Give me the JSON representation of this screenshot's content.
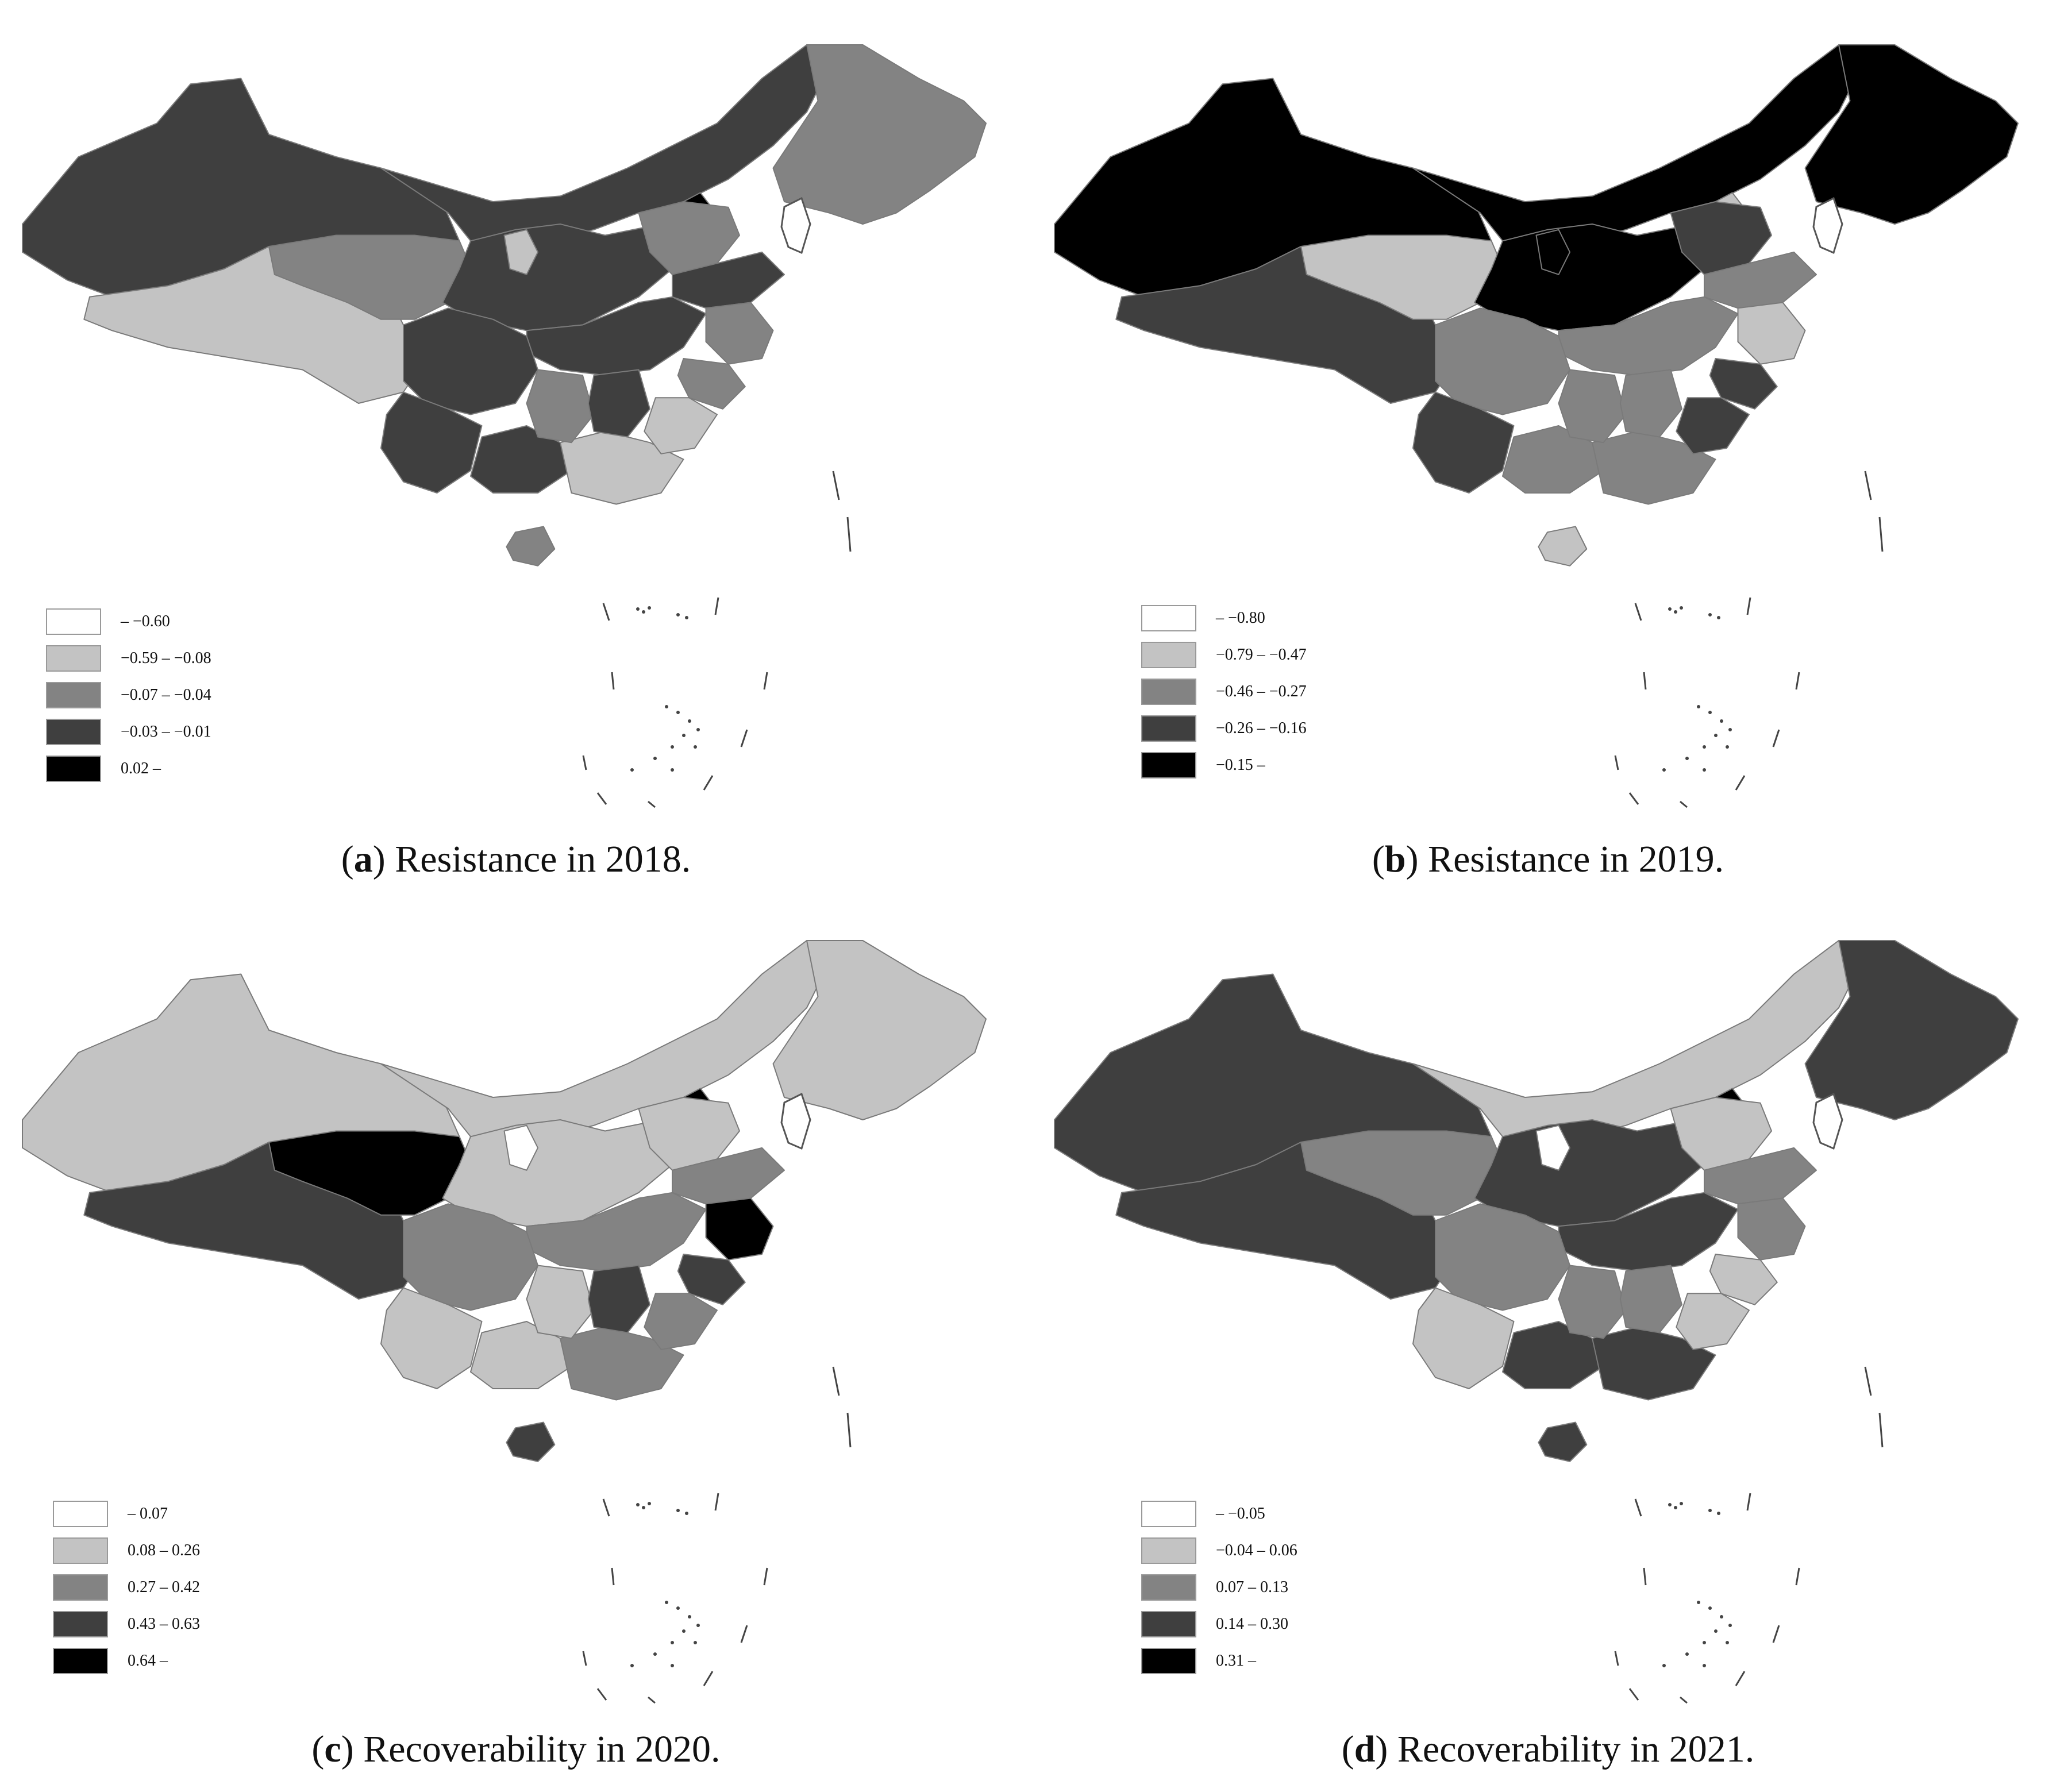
{
  "colors": {
    "class1": "#ffffff",
    "class2": "#c3c3c3",
    "class3": "#838383",
    "class4": "#3f3f3f",
    "class5": "#000000",
    "border": "#7a7a7a"
  },
  "panels": [
    {
      "letter": "a",
      "caption": "Resistance in 2018.",
      "legend": [
        "– −0.60",
        "−0.59 – −0.08",
        "−0.07 – −0.04",
        "−0.03 – −0.01",
        "0.02 –"
      ],
      "fills": {
        "northwest": 4,
        "tibet": 2,
        "qinghai": 3,
        "inner_mongolia": 4,
        "northeast": 3,
        "north_china": 4,
        "ningxia": 2,
        "beijing": 5,
        "hebei": 3,
        "shandong": 4,
        "central": 4,
        "sichuan": 4,
        "yunnan": 4,
        "guangxi": 4,
        "guangdong": 2,
        "hunan": 3,
        "jiangxi": 4,
        "jiangsu": 3,
        "zhejiang": 3,
        "fujian": 2,
        "hainan": 3
      }
    },
    {
      "letter": "b",
      "caption": "Resistance in 2019.",
      "legend": [
        "– −0.80",
        "−0.79 – −0.47",
        "−0.46 – −0.27",
        "−0.26 – −0.16",
        "−0.15 –"
      ],
      "fills": {
        "northwest": 5,
        "tibet": 4,
        "qinghai": 2,
        "inner_mongolia": 5,
        "northeast": 5,
        "north_china": 5,
        "ningxia": 5,
        "beijing": 2,
        "hebei": 4,
        "shandong": 3,
        "central": 3,
        "sichuan": 3,
        "yunnan": 4,
        "guangxi": 3,
        "guangdong": 3,
        "hunan": 3,
        "jiangxi": 3,
        "jiangsu": 2,
        "zhejiang": 4,
        "fujian": 4,
        "hainan": 2
      }
    },
    {
      "letter": "c",
      "caption": "Recoverability in 2020.",
      "legend": [
        "– 0.07",
        "0.08 – 0.26",
        "0.27 – 0.42",
        "0.43 – 0.63",
        "0.64 –"
      ],
      "fills": {
        "northwest": 2,
        "tibet": 4,
        "qinghai": 5,
        "inner_mongolia": 2,
        "northeast": 2,
        "north_china": 2,
        "ningxia": 1,
        "beijing": 5,
        "hebei": 2,
        "shandong": 3,
        "central": 3,
        "sichuan": 3,
        "yunnan": 2,
        "guangxi": 2,
        "guangdong": 3,
        "hunan": 2,
        "jiangxi": 4,
        "jiangsu": 5,
        "zhejiang": 4,
        "fujian": 3,
        "hainan": 4
      }
    },
    {
      "letter": "d",
      "caption": "Recoverability in 2021.",
      "legend": [
        "– −0.05",
        "−0.04 – 0.06",
        "0.07 – 0.13",
        "0.14 – 0.30",
        "0.31 –"
      ],
      "fills": {
        "northwest": 4,
        "tibet": 4,
        "qinghai": 3,
        "inner_mongolia": 2,
        "northeast": 4,
        "north_china": 4,
        "ningxia": 1,
        "beijing": 5,
        "hebei": 2,
        "shandong": 3,
        "central": 4,
        "sichuan": 3,
        "yunnan": 2,
        "guangxi": 4,
        "guangdong": 4,
        "hunan": 3,
        "jiangxi": 3,
        "jiangsu": 3,
        "zhejiang": 2,
        "fujian": 2,
        "hainan": 4
      }
    }
  ]
}
